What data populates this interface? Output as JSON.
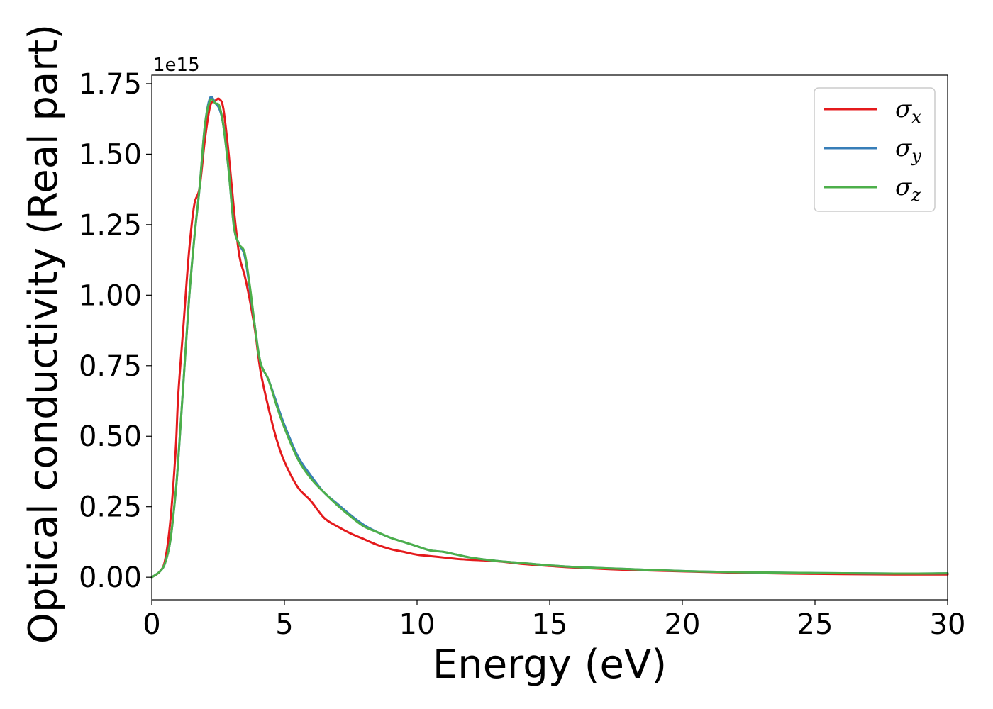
{
  "chart_data": {
    "type": "line",
    "xlabel": "Energy (eV)",
    "ylabel": "Optical conductivity (Real part)",
    "y_offset_text": "1e15",
    "xlim": [
      0,
      30
    ],
    "ylim": [
      -0.08,
      1.78
    ],
    "x_ticks": [
      0,
      5,
      10,
      15,
      20,
      25,
      30
    ],
    "x_tick_labels": [
      "0",
      "5",
      "10",
      "15",
      "20",
      "25",
      "30"
    ],
    "y_ticks": [
      0.0,
      0.25,
      0.5,
      0.75,
      1.0,
      1.25,
      1.5,
      1.75
    ],
    "y_tick_labels": [
      "0.00",
      "0.25",
      "0.50",
      "0.75",
      "1.00",
      "1.25",
      "1.50",
      "1.75"
    ],
    "grid": false,
    "legend_position": "top-right",
    "series": [
      {
        "name": "σx",
        "legend_base": "σ",
        "legend_sub": "x",
        "color": "#e41a1c",
        "x": [
          0,
          0.3,
          0.5,
          0.7,
          0.9,
          1.0,
          1.2,
          1.4,
          1.6,
          1.8,
          2.0,
          2.2,
          2.4,
          2.55,
          2.7,
          2.9,
          3.1,
          3.3,
          3.5,
          3.7,
          3.9,
          4.1,
          4.4,
          4.7,
          5.0,
          5.5,
          6.0,
          6.5,
          7.0,
          7.5,
          8.0,
          8.5,
          9.0,
          9.5,
          10.0,
          10.5,
          11.0,
          11.5,
          12.0,
          13.0,
          14.0,
          15.0,
          16.0,
          18.0,
          20.0,
          22.0,
          25.0,
          28.0,
          30.0
        ],
        "y": [
          0.0,
          0.02,
          0.06,
          0.2,
          0.45,
          0.65,
          0.9,
          1.15,
          1.32,
          1.38,
          1.55,
          1.67,
          1.69,
          1.695,
          1.66,
          1.5,
          1.3,
          1.14,
          1.07,
          0.98,
          0.87,
          0.73,
          0.6,
          0.49,
          0.41,
          0.32,
          0.27,
          0.21,
          0.18,
          0.155,
          0.135,
          0.115,
          0.1,
          0.09,
          0.08,
          0.075,
          0.07,
          0.065,
          0.062,
          0.057,
          0.047,
          0.04,
          0.034,
          0.026,
          0.021,
          0.016,
          0.012,
          0.01,
          0.01
        ]
      },
      {
        "name": "σy",
        "legend_base": "σ",
        "legend_sub": "y",
        "color": "#377eb8",
        "x": [
          0,
          0.3,
          0.5,
          0.7,
          0.9,
          1.0,
          1.2,
          1.4,
          1.6,
          1.8,
          2.0,
          2.2,
          2.4,
          2.55,
          2.7,
          2.9,
          3.1,
          3.3,
          3.5,
          3.7,
          3.9,
          4.1,
          4.4,
          4.7,
          5.0,
          5.5,
          6.0,
          6.5,
          7.0,
          7.5,
          8.0,
          8.5,
          9.0,
          9.5,
          10.0,
          10.5,
          11.0,
          11.5,
          12.0,
          13.0,
          14.0,
          15.0,
          16.0,
          18.0,
          20.0,
          22.0,
          25.0,
          28.0,
          30.0
        ],
        "y": [
          0.0,
          0.02,
          0.05,
          0.13,
          0.3,
          0.42,
          0.7,
          0.98,
          1.2,
          1.38,
          1.6,
          1.7,
          1.68,
          1.66,
          1.6,
          1.44,
          1.24,
          1.18,
          1.14,
          1.02,
          0.88,
          0.76,
          0.7,
          0.62,
          0.54,
          0.43,
          0.36,
          0.3,
          0.26,
          0.22,
          0.185,
          0.16,
          0.14,
          0.125,
          0.11,
          0.095,
          0.09,
          0.08,
          0.07,
          0.058,
          0.05,
          0.042,
          0.036,
          0.029,
          0.022,
          0.018,
          0.015,
          0.013,
          0.014
        ]
      },
      {
        "name": "σz",
        "legend_base": "σ",
        "legend_sub": "z",
        "color": "#4daf4a",
        "x": [
          0,
          0.3,
          0.5,
          0.7,
          0.9,
          1.0,
          1.2,
          1.4,
          1.6,
          1.8,
          2.0,
          2.2,
          2.4,
          2.55,
          2.7,
          2.9,
          3.1,
          3.3,
          3.5,
          3.7,
          3.9,
          4.1,
          4.4,
          4.7,
          5.0,
          5.5,
          6.0,
          6.5,
          7.0,
          7.5,
          8.0,
          8.5,
          9.0,
          9.5,
          10.0,
          10.5,
          11.0,
          11.5,
          12.0,
          13.0,
          14.0,
          15.0,
          16.0,
          18.0,
          20.0,
          22.0,
          25.0,
          28.0,
          30.0
        ],
        "y": [
          0.0,
          0.02,
          0.05,
          0.13,
          0.3,
          0.42,
          0.7,
          0.98,
          1.2,
          1.38,
          1.6,
          1.69,
          1.68,
          1.67,
          1.6,
          1.44,
          1.24,
          1.18,
          1.15,
          1.03,
          0.88,
          0.76,
          0.7,
          0.61,
          0.53,
          0.42,
          0.35,
          0.3,
          0.255,
          0.215,
          0.18,
          0.16,
          0.14,
          0.125,
          0.11,
          0.095,
          0.09,
          0.08,
          0.07,
          0.058,
          0.05,
          0.042,
          0.036,
          0.029,
          0.022,
          0.018,
          0.015,
          0.013,
          0.014
        ]
      }
    ]
  }
}
